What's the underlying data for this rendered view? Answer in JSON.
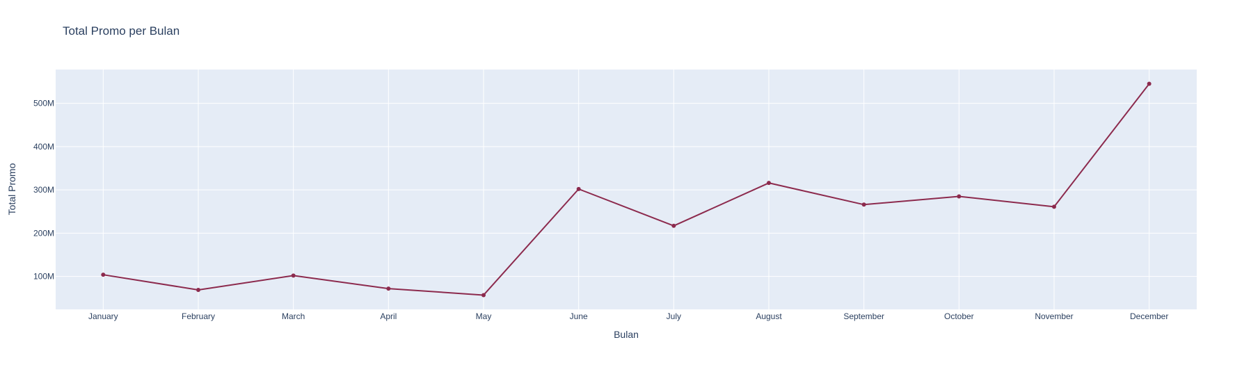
{
  "chart_data": {
    "type": "line",
    "title": "Total Promo per Bulan",
    "xlabel": "Bulan",
    "ylabel": "Total Promo",
    "categories": [
      "January",
      "February",
      "March",
      "April",
      "May",
      "June",
      "July",
      "August",
      "September",
      "October",
      "November",
      "December"
    ],
    "series": [
      {
        "values": [
          104000000,
          69000000,
          102000000,
          72000000,
          57000000,
          302000000,
          217000000,
          316000000,
          266000000,
          285000000,
          261000000,
          545000000
        ]
      }
    ],
    "ylim": [
      24000000,
      578000000
    ],
    "yticks": [
      100000000,
      200000000,
      300000000,
      400000000,
      500000000
    ],
    "ytick_labels": [
      "100M",
      "200M",
      "300M",
      "400M",
      "500M"
    ],
    "grid": true,
    "legend": "none",
    "colors": {
      "line": "#8c2a4d",
      "plot_background": "#e5ecf6",
      "grid": "#ffffff",
      "text": "#2a3f5f"
    }
  }
}
